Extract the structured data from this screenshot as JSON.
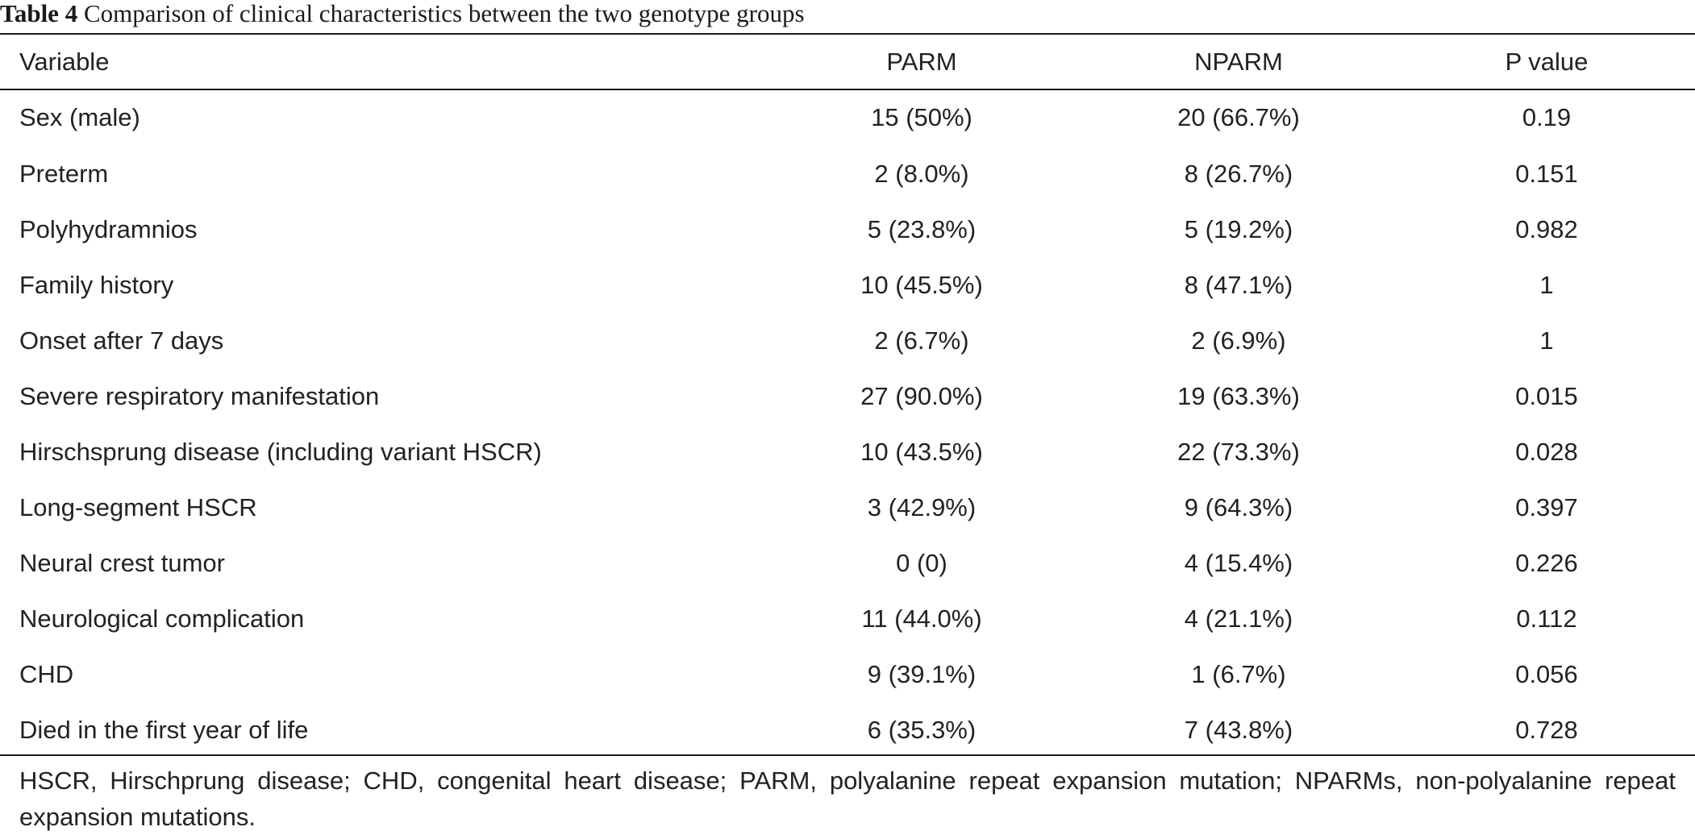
{
  "caption": {
    "label": "Table 4",
    "text": "Comparison of clinical characteristics between the two genotype groups"
  },
  "table": {
    "headers": [
      "Variable",
      "PARM",
      "NPARM",
      "P value"
    ],
    "rows": [
      [
        "Sex (male)",
        "15 (50%)",
        "20 (66.7%)",
        "0.19"
      ],
      [
        "Preterm",
        "2 (8.0%)",
        "8 (26.7%)",
        "0.151"
      ],
      [
        "Polyhydramnios",
        "5 (23.8%)",
        "5 (19.2%)",
        "0.982"
      ],
      [
        "Family history",
        "10 (45.5%)",
        "8 (47.1%)",
        "1"
      ],
      [
        "Onset after 7 days",
        "2 (6.7%)",
        "2 (6.9%)",
        "1"
      ],
      [
        "Severe respiratory manifestation",
        "27 (90.0%)",
        "19 (63.3%)",
        "0.015"
      ],
      [
        "Hirschsprung disease (including variant HSCR)",
        "10 (43.5%)",
        "22 (73.3%)",
        "0.028"
      ],
      [
        "Long-segment HSCR",
        "3 (42.9%)",
        "9 (64.3%)",
        "0.397"
      ],
      [
        "Neural crest tumor",
        "0 (0)",
        "4 (15.4%)",
        "0.226"
      ],
      [
        "Neurological complication",
        "11 (44.0%)",
        "4 (21.1%)",
        "0.112"
      ],
      [
        "CHD",
        "9 (39.1%)",
        "1 (6.7%)",
        "0.056"
      ],
      [
        "Died in the first year of life",
        "6 (35.3%)",
        "7 (43.8%)",
        "0.728"
      ]
    ]
  },
  "footnote": "HSCR, Hirschprung disease; CHD, congenital heart disease; PARM, polyalanine repeat expansion mutation; NPARMs, non-polyalanine repeat expansion mutations."
}
